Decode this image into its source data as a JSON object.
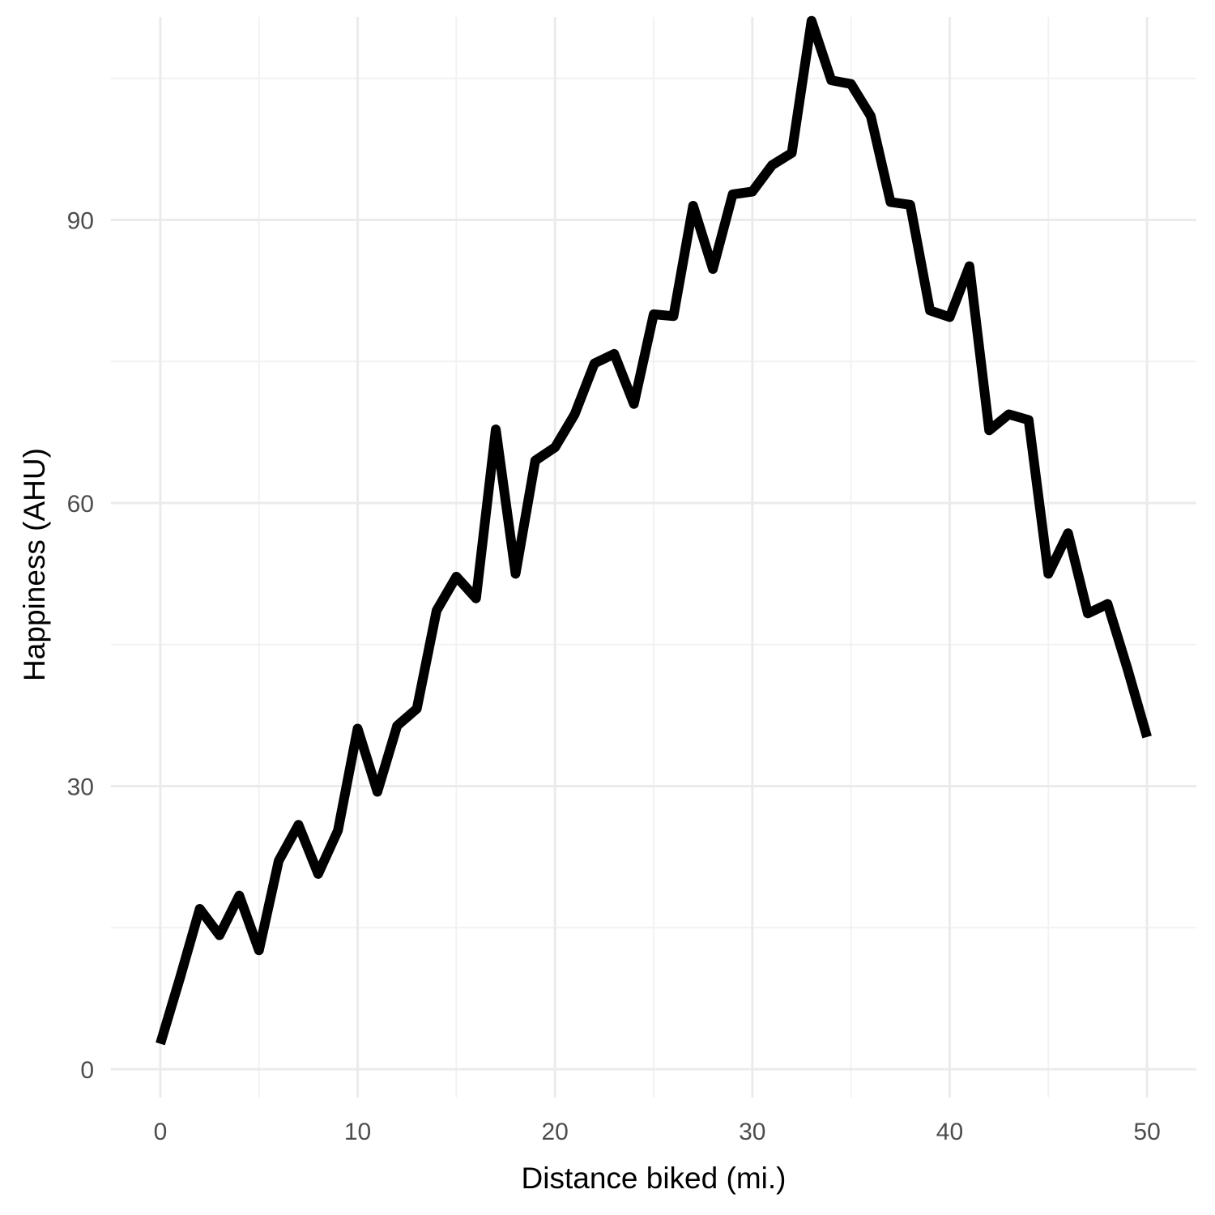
{
  "chart_data": {
    "type": "line",
    "title": "",
    "xlabel": "Distance biked (mi.)",
    "ylabel": "Happiness (AHU)",
    "xlim": [
      -2.5,
      52.5
    ],
    "ylim": [
      -3,
      111.5
    ],
    "x_ticks": [
      0,
      10,
      20,
      30,
      40,
      50
    ],
    "x_tick_labels": [
      "0",
      "10",
      "20",
      "30",
      "40",
      "50"
    ],
    "y_ticks": [
      0,
      30,
      60,
      90
    ],
    "y_tick_labels": [
      "0",
      "30",
      "60",
      "90"
    ],
    "grid": true,
    "line_color": "#000000",
    "series": [
      {
        "x": [
          0,
          1,
          2,
          3,
          4,
          5,
          6,
          7,
          8,
          9,
          10,
          11,
          12,
          13,
          14,
          15,
          16,
          17,
          18,
          19,
          20,
          21,
          22,
          23,
          24,
          25,
          26,
          27,
          28,
          29,
          30,
          31,
          32,
          33,
          34,
          35,
          36,
          37,
          38,
          39,
          40,
          41,
          42,
          43,
          44,
          45,
          46,
          47,
          48,
          49,
          50
        ],
        "values": [
          2.7,
          9.7,
          17.0,
          14.2,
          18.4,
          12.6,
          22.1,
          25.9,
          20.7,
          25.3,
          36.1,
          29.4,
          36.4,
          38.2,
          48.6,
          52.2,
          49.9,
          67.8,
          52.5,
          64.5,
          65.9,
          69.4,
          74.8,
          75.8,
          70.5,
          80.0,
          79.8,
          91.5,
          84.8,
          92.7,
          93.0,
          95.8,
          97.1,
          111.1,
          104.8,
          104.4,
          101.0,
          91.9,
          91.6,
          80.4,
          79.7,
          85.1,
          67.7,
          69.4,
          68.8,
          52.5,
          56.8,
          48.3,
          49.3,
          42.5,
          35.2
        ]
      }
    ]
  }
}
